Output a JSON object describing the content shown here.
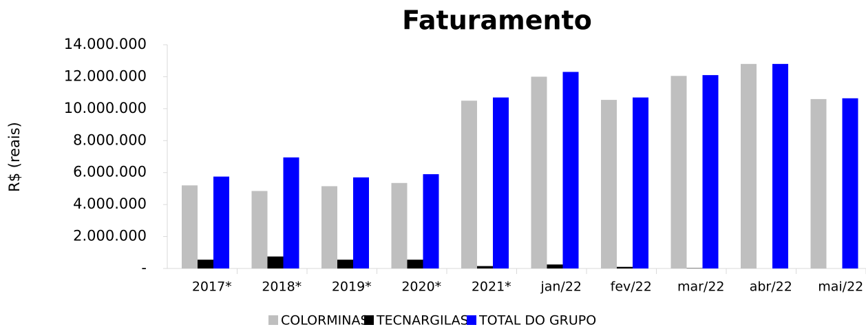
{
  "chart_data": {
    "type": "bar",
    "title": "Faturamento",
    "y_label": "R$ (reais)",
    "categories": [
      "2017*",
      "2018*",
      "2019*",
      "2020*",
      "2021*",
      "jan/22",
      "fev/22",
      "mar/22",
      "abr/22",
      "mai/22"
    ],
    "series": [
      {
        "name": "COLORMINAS",
        "color": "#bfbfbf",
        "values": [
          5200000,
          4850000,
          5150000,
          5350000,
          10500000,
          12000000,
          10550000,
          12050000,
          12800000,
          10600000
        ]
      },
      {
        "name": "TECNARGILAS",
        "color": "#000000",
        "values": [
          550000,
          750000,
          550000,
          550000,
          150000,
          250000,
          100000,
          20000,
          0,
          0
        ]
      },
      {
        "name": "TOTAL DO GRUPO",
        "color": "#0000ff",
        "values": [
          5750000,
          6950000,
          5700000,
          5900000,
          10700000,
          12300000,
          10700000,
          12100000,
          12800000,
          10650000
        ]
      }
    ],
    "ylim": [
      0,
      14000000
    ],
    "yticks": [
      {
        "value": 0,
        "label": "-"
      },
      {
        "value": 2000000,
        "label": "2.000.000"
      },
      {
        "value": 4000000,
        "label": "4.000.000"
      },
      {
        "value": 6000000,
        "label": "6.000.000"
      },
      {
        "value": 8000000,
        "label": "8.000.000"
      },
      {
        "value": 10000000,
        "label": "10.000.000"
      },
      {
        "value": 12000000,
        "label": "12.000.000"
      },
      {
        "value": 14000000,
        "label": "14.000.000"
      }
    ],
    "legend": "bottom"
  }
}
